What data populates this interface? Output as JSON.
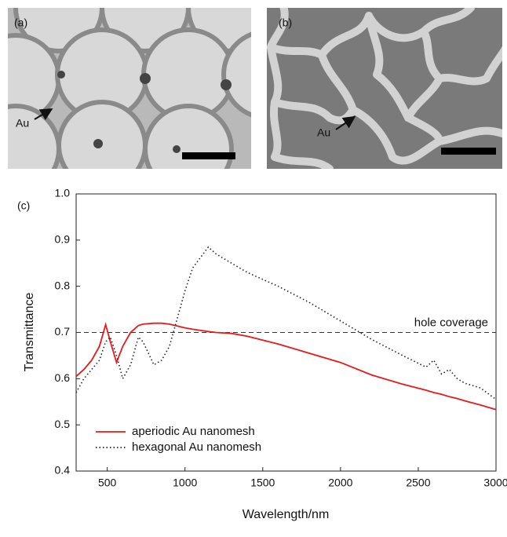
{
  "panels": [
    {
      "label": "(a)",
      "annotation": "Au"
    },
    {
      "label": "(b)",
      "annotation": "Au"
    }
  ],
  "chart_data": {
    "type": "line",
    "panel_label": "(c)",
    "x_label": "Wavelength/nm",
    "y_label": "Transmittance",
    "xlim": [
      300,
      3000
    ],
    "xticks": [
      500,
      1000,
      1500,
      2000,
      2500,
      3000
    ],
    "ylim": [
      0.4,
      1.0
    ],
    "yticks": [
      0.4,
      0.5,
      0.6,
      0.7,
      0.8,
      0.9,
      {
        "value": 1.0,
        "label": "1.0"
      }
    ],
    "legend": "lower left",
    "reference_line": {
      "value": 0.7,
      "label": "hole coverage"
    },
    "x": [
      300,
      350,
      400,
      450,
      490,
      520,
      560,
      600,
      650,
      700,
      730,
      800,
      850,
      900,
      950,
      1000,
      1050,
      1150,
      1200,
      1300,
      1400,
      1600,
      1800,
      2000,
      2200,
      2400,
      2550,
      2600,
      2650,
      2700,
      2750,
      2800,
      2900,
      3000
    ],
    "series": [
      {
        "name": "aperiodic Au nanomesh",
        "color": "#e8191c",
        "style": "solid",
        "values": [
          0.605,
          0.62,
          0.64,
          0.67,
          0.717,
          0.68,
          0.635,
          0.67,
          0.7,
          0.715,
          0.718,
          0.72,
          0.72,
          0.718,
          0.714,
          0.71,
          0.707,
          0.702,
          0.7,
          0.698,
          0.692,
          0.675,
          0.655,
          0.635,
          0.608,
          0.588,
          0.575,
          0.57,
          0.566,
          0.561,
          0.557,
          0.552,
          0.543,
          0.533
        ]
      },
      {
        "name": "hexagonal Au nanomesh",
        "color": "#222222",
        "style": "dotted",
        "values": [
          0.57,
          0.6,
          0.62,
          0.64,
          0.68,
          0.69,
          0.65,
          0.6,
          0.63,
          0.69,
          0.68,
          0.63,
          0.64,
          0.67,
          0.73,
          0.79,
          0.84,
          0.885,
          0.87,
          0.85,
          0.83,
          0.8,
          0.765,
          0.725,
          0.685,
          0.65,
          0.625,
          0.64,
          0.61,
          0.62,
          0.6,
          0.59,
          0.58,
          0.555
        ]
      }
    ]
  }
}
